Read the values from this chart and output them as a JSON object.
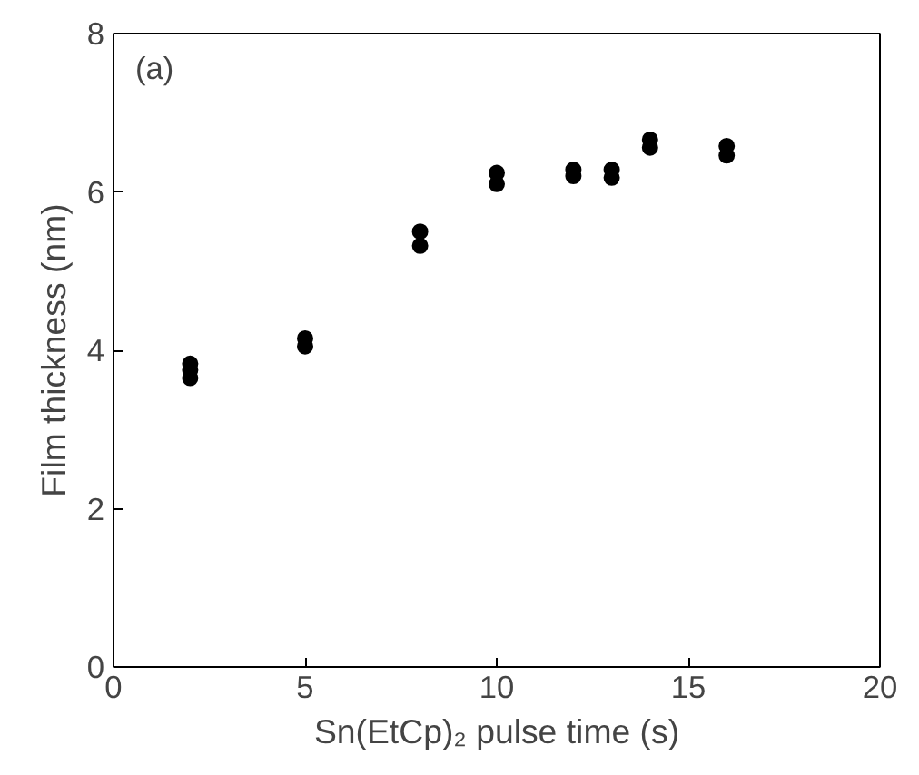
{
  "chart_data": {
    "type": "scatter",
    "xlabel": "Sn(EtCp)₂ pulse time (s)",
    "ylabel": "Film thickness (nm)",
    "annotations": [
      "(a)"
    ],
    "x": [
      2,
      2,
      2,
      5,
      5,
      8,
      8,
      10,
      10,
      12,
      12,
      13,
      13,
      14,
      14,
      16,
      16
    ],
    "series": [
      {
        "color": "#000000",
        "values": [
          3.83,
          3.75,
          3.65,
          4.15,
          4.05,
          5.5,
          5.32,
          6.24,
          6.1,
          6.28,
          6.2,
          6.28,
          6.18,
          6.66,
          6.56,
          6.58,
          6.46
        ]
      }
    ],
    "xlim": [
      0,
      20
    ],
    "ylim": [
      0,
      8
    ],
    "xticks": [
      0,
      5,
      10,
      15,
      20
    ],
    "yticks": [
      0,
      2,
      4,
      6,
      8
    ],
    "grid": false,
    "marker": "circle"
  }
}
